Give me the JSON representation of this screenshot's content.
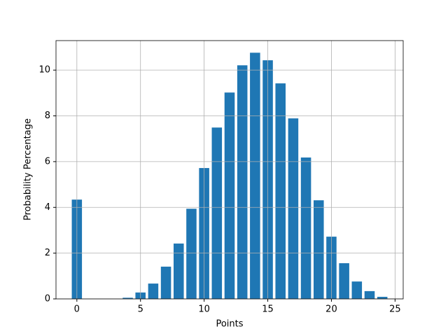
{
  "chart_data": {
    "type": "bar",
    "xlabel": "Points",
    "ylabel": "Probability Percentage",
    "x": [
      0,
      1,
      2,
      3,
      4,
      5,
      6,
      7,
      8,
      9,
      10,
      11,
      12,
      13,
      14,
      15,
      16,
      17,
      18,
      19,
      20,
      21,
      22,
      23,
      24
    ],
    "values": [
      4.34,
      0,
      0,
      0,
      0.05,
      0.28,
      0.67,
      1.41,
      2.42,
      3.94,
      5.72,
      7.49,
      9.02,
      10.21,
      10.76,
      10.43,
      9.42,
      7.89,
      6.18,
      4.31,
      2.72,
      1.56,
      0.76,
      0.34,
      0.09
    ],
    "color": "#1f77b4",
    "xlim": [
      -1.64,
      25.64
    ],
    "xticks": [
      0,
      5,
      10,
      15,
      20,
      25
    ],
    "ylim": [
      0,
      11.29
    ],
    "yticks": [
      0,
      2,
      4,
      6,
      8,
      10
    ],
    "grid": true
  }
}
